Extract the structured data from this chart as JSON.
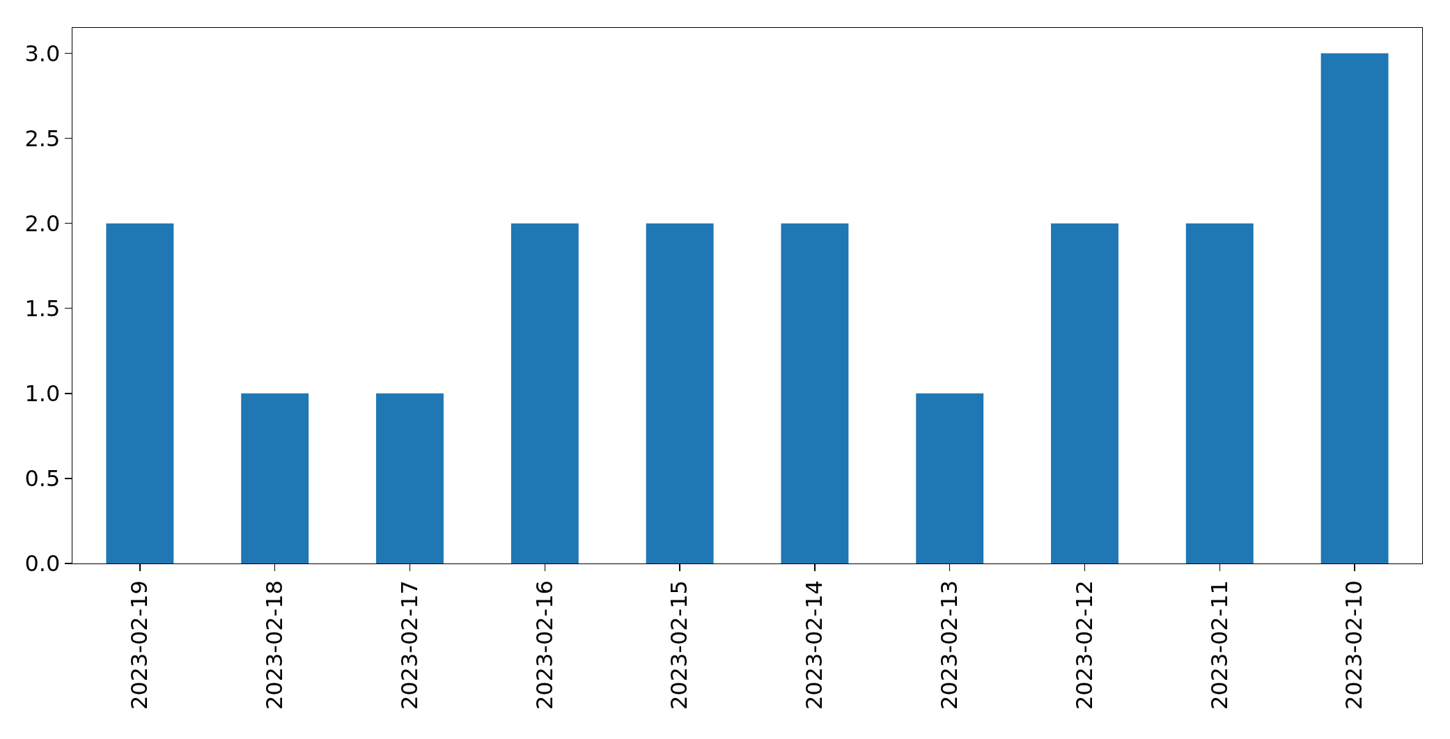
{
  "chart_data": {
    "type": "bar",
    "categories": [
      "2023-02-19",
      "2023-02-18",
      "2023-02-17",
      "2023-02-16",
      "2023-02-15",
      "2023-02-14",
      "2023-02-13",
      "2023-02-12",
      "2023-02-11",
      "2023-02-10"
    ],
    "values": [
      2,
      1,
      1,
      2,
      2,
      2,
      1,
      2,
      2,
      3
    ],
    "color": "#1f77b4",
    "ylim": [
      0,
      3.15
    ],
    "yticks": [
      {
        "value": 0,
        "label": "0.0"
      },
      {
        "value": 0.5,
        "label": "0.5"
      },
      {
        "value": 1,
        "label": "1.0"
      },
      {
        "value": 1.5,
        "label": "1.5"
      },
      {
        "value": 2,
        "label": "2.0"
      },
      {
        "value": 2.5,
        "label": "2.5"
      },
      {
        "value": 3,
        "label": "3.0"
      }
    ],
    "grid": false
  }
}
